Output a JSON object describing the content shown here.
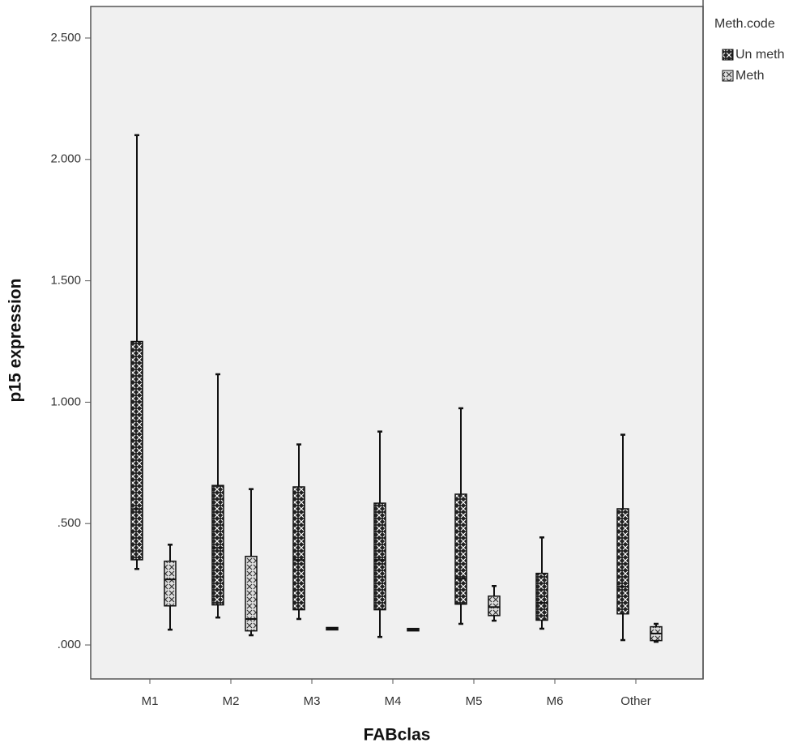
{
  "chart_data": {
    "type": "boxplot",
    "x_label": "FABclas",
    "y_label": "p15 expression",
    "legend_title": "Meth.code",
    "legend_position": "right",
    "categories": [
      "M1",
      "M2",
      "M3",
      "M4",
      "M5",
      "M6",
      "Other"
    ],
    "ylim": [
      -0.14,
      2.63
    ],
    "yticks": [
      {
        "value": 0,
        "label": ".000"
      },
      {
        "value": 0.5,
        "label": ".500"
      },
      {
        "value": 1,
        "label": "1.000"
      },
      {
        "value": 1.5,
        "label": "1.500"
      },
      {
        "value": 2,
        "label": "2.000"
      },
      {
        "value": 2.5,
        "label": "2.500"
      }
    ],
    "series": [
      {
        "name": "Un meth",
        "color": "#222222",
        "min": [
          0.313,
          0.113,
          0.107,
          0.033,
          0.087,
          0.067,
          0.02
        ],
        "q1": [
          0.356,
          0.17,
          0.15,
          0.15,
          0.173,
          0.107,
          0.133
        ],
        "median": [
          0.56,
          0.4,
          0.35,
          0.35,
          0.273,
          0.173,
          0.24
        ],
        "q3": [
          1.245,
          0.652,
          0.646,
          0.579,
          0.616,
          0.29,
          0.556
        ],
        "max": [
          2.1,
          1.115,
          0.826,
          0.879,
          0.975,
          0.443,
          0.866
        ]
      },
      {
        "name": "Meth",
        "color": "#dddddd",
        "min": [
          0.063,
          0.04,
          0.067,
          0.063,
          0.1,
          null,
          0.013
        ],
        "q1": [
          0.166,
          0.063,
          0.067,
          0.063,
          0.126,
          null,
          0.023
        ],
        "median": [
          0.27,
          0.107,
          0.067,
          0.063,
          0.156,
          null,
          0.047
        ],
        "q3": [
          0.34,
          0.36,
          0.067,
          0.063,
          0.196,
          null,
          0.07
        ],
        "max": [
          0.413,
          0.642,
          0.067,
          0.063,
          0.243,
          null,
          0.087
        ]
      }
    ]
  }
}
